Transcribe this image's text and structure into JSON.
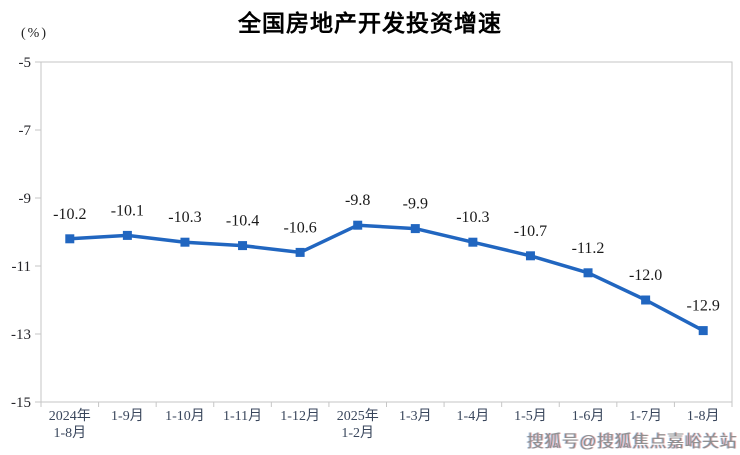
{
  "title": "全国房地产开发投资增速",
  "unit_label": "(%)",
  "watermark": "搜狐号@搜狐焦点嘉峪关站",
  "colors": {
    "line": "#2166c0",
    "plot_frame": "#c6c6c6",
    "title_text": "#000000",
    "y_axis_text": "#26262b",
    "x_axis_text": "#39465c",
    "data_label_text": "#1a1a1a",
    "watermark_text": "#8f8f8f"
  },
  "chart_data": {
    "type": "line",
    "title": "全国房地产开发投资增速",
    "ylabel": "(%)",
    "categories": [
      "2024年\n1-8月",
      "1-9月",
      "1-10月",
      "1-11月",
      "1-12月",
      "2025年\n1-2月",
      "1-3月",
      "1-4月",
      "1-5月",
      "1-6月",
      "1-7月",
      "1-8月"
    ],
    "values": [
      -10.2,
      -10.1,
      -10.3,
      -10.4,
      -10.6,
      -9.8,
      -9.9,
      -10.3,
      -10.7,
      -11.2,
      -12.0,
      -12.9
    ],
    "data_labels": [
      "-10.2",
      "-10.1",
      "-10.3",
      "-10.4",
      "-10.6",
      "-9.8",
      "-9.9",
      "-10.3",
      "-10.7",
      "-11.2",
      "-12.0",
      "-12.9"
    ],
    "ylim": [
      -15,
      -5
    ],
    "yticks": [
      -5,
      -7,
      -9,
      -11,
      -13,
      -15
    ],
    "grid": false,
    "legend": "none",
    "marker": "square"
  }
}
